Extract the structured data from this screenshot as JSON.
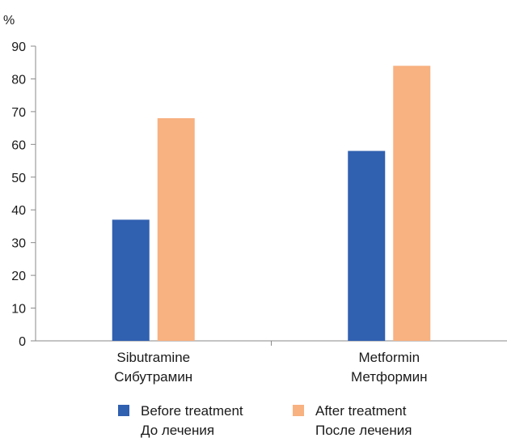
{
  "chart_data": {
    "type": "bar",
    "ylabel": "%",
    "ylim": [
      0,
      90
    ],
    "yticks": [
      0,
      10,
      20,
      30,
      40,
      50,
      60,
      70,
      80,
      90
    ],
    "categories": [
      {
        "line1": "Sibutramine",
        "line2": "Сибутрамин"
      },
      {
        "line1": "Metformin",
        "line2": "Метформин"
      }
    ],
    "series": [
      {
        "name_line1": "Before treatment",
        "name_line2": "До лечения",
        "color": "#3060b0",
        "values": [
          37,
          58
        ]
      },
      {
        "name_line1": "After treatment",
        "name_line2": "После лечения",
        "color": "#f8b181",
        "values": [
          68,
          84
        ]
      }
    ],
    "grid": false,
    "legend": "bottom"
  }
}
